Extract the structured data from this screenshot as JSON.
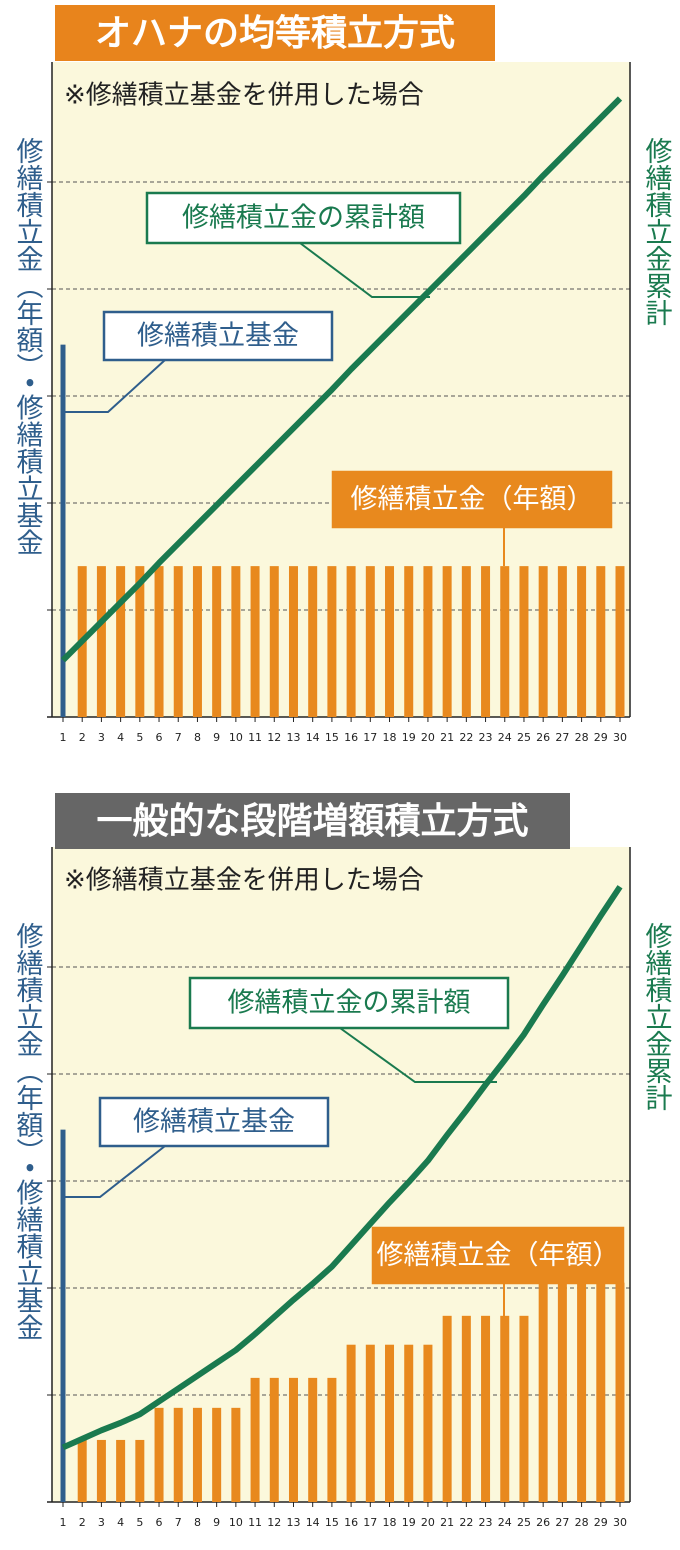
{
  "chart_data": [
    {
      "type": "bar",
      "title": "オハナの均等積立方式",
      "subtitle": "※修繕積立基金を併用した場合",
      "y_label": "修繕積立金（年額）・修繕積立基金",
      "y2_label": "修繕積立金累計",
      "categories": [
        "1",
        "2",
        "3",
        "4",
        "5",
        "6",
        "7",
        "8",
        "9",
        "10",
        "11",
        "12",
        "13",
        "14",
        "15",
        "16",
        "17",
        "18",
        "19",
        "20",
        "21",
        "22",
        "23",
        "24",
        "25",
        "26",
        "27",
        "28",
        "29",
        "30"
      ],
      "ylim": [
        0,
        6
      ],
      "yticks": [
        1,
        2,
        3,
        4,
        5
      ],
      "y2lim": [
        0,
        6
      ],
      "grid": true,
      "title_color": "#e8841c",
      "series": [
        {
          "name": "修繕積立基金",
          "color": "#2f5e8c",
          "values": [
            3.48,
            null,
            null,
            null,
            null,
            null,
            null,
            null,
            null,
            null,
            null,
            null,
            null,
            null,
            null,
            null,
            null,
            null,
            null,
            null,
            null,
            null,
            null,
            null,
            null,
            null,
            null,
            null,
            null,
            null
          ]
        },
        {
          "name": "修繕積立金（年額）",
          "color": "#e8891e",
          "values": [
            null,
            1.41,
            1.41,
            1.41,
            1.41,
            1.41,
            1.41,
            1.41,
            1.41,
            1.41,
            1.41,
            1.41,
            1.41,
            1.41,
            1.41,
            1.41,
            1.41,
            1.41,
            1.41,
            1.41,
            1.41,
            1.41,
            1.41,
            1.41,
            1.41,
            1.41,
            1.41,
            1.41,
            1.41,
            1.41
          ]
        },
        {
          "name": "修繕積立金の累計額",
          "color": "#1a7a4f",
          "type": "line",
          "axis": "y2",
          "values": [
            0.53,
            0.71,
            0.89,
            1.07,
            1.25,
            1.44,
            1.62,
            1.8,
            1.98,
            2.16,
            2.34,
            2.52,
            2.7,
            2.88,
            3.06,
            3.25,
            3.43,
            3.61,
            3.79,
            3.97,
            4.15,
            4.33,
            4.51,
            4.69,
            4.87,
            5.06,
            5.24,
            5.42,
            5.6,
            5.78
          ]
        }
      ]
    },
    {
      "type": "bar",
      "title": "一般的な段階増額積立方式",
      "subtitle": "※修繕積立基金を併用した場合",
      "y_label": "修繕積立金（年額）・修繕積立基金",
      "y2_label": "修繕積立金累計",
      "categories": [
        "1",
        "2",
        "3",
        "4",
        "5",
        "6",
        "7",
        "8",
        "9",
        "10",
        "11",
        "12",
        "13",
        "14",
        "15",
        "16",
        "17",
        "18",
        "19",
        "20",
        "21",
        "22",
        "23",
        "24",
        "25",
        "26",
        "27",
        "28",
        "29",
        "30"
      ],
      "ylim": [
        0,
        6
      ],
      "yticks": [
        1,
        2,
        3,
        4,
        5
      ],
      "y2lim": [
        0,
        6
      ],
      "grid": true,
      "title_color": "#666666",
      "series": [
        {
          "name": "修繕積立基金",
          "color": "#2f5e8c",
          "values": [
            3.48,
            null,
            null,
            null,
            null,
            null,
            null,
            null,
            null,
            null,
            null,
            null,
            null,
            null,
            null,
            null,
            null,
            null,
            null,
            null,
            null,
            null,
            null,
            null,
            null,
            null,
            null,
            null,
            null,
            null
          ]
        },
        {
          "name": "修繕積立金（年額）",
          "color": "#e8891e",
          "values": [
            null,
            0.58,
            0.58,
            0.58,
            0.58,
            0.88,
            0.88,
            0.88,
            0.88,
            0.88,
            1.16,
            1.16,
            1.16,
            1.16,
            1.16,
            1.47,
            1.47,
            1.47,
            1.47,
            1.47,
            1.74,
            1.74,
            1.74,
            1.74,
            1.74,
            2.05,
            2.05,
            2.05,
            2.05,
            2.05
          ]
        },
        {
          "name": "修繕積立金の累計額",
          "color": "#1a7a4f",
          "type": "line",
          "axis": "y2",
          "values": [
            0.51,
            0.59,
            0.67,
            0.74,
            0.82,
            0.94,
            1.06,
            1.18,
            1.3,
            1.42,
            1.57,
            1.73,
            1.89,
            2.04,
            2.2,
            2.4,
            2.6,
            2.8,
            2.99,
            3.19,
            3.43,
            3.66,
            3.9,
            4.13,
            4.37,
            4.65,
            4.92,
            5.2,
            5.48,
            5.75
          ]
        }
      ]
    }
  ]
}
